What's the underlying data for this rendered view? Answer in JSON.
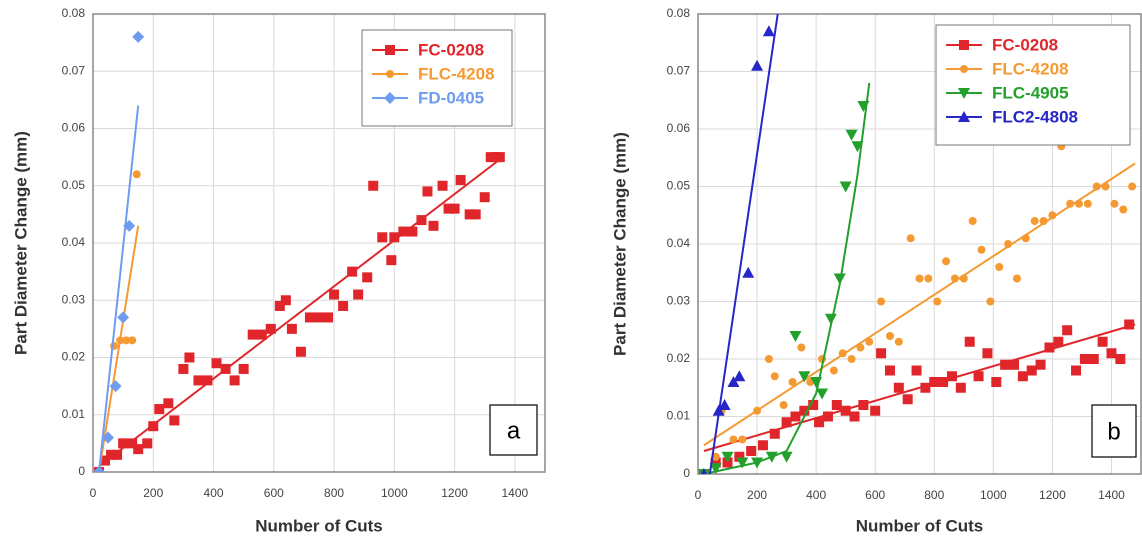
{
  "chart_data": [
    {
      "type": "scatter",
      "panel_label": "a",
      "xlabel": "Number of Cuts",
      "ylabel": "Part Diameter Change (mm)",
      "xlim": [
        0,
        1500
      ],
      "ylim": [
        0,
        0.08
      ],
      "xticks": [
        0,
        200,
        400,
        600,
        800,
        1000,
        1200,
        1400
      ],
      "yticks": [
        0,
        0.01,
        0.02,
        0.03,
        0.04,
        0.05,
        0.06,
        0.07,
        0.08
      ],
      "grid": true,
      "legend": "upper right",
      "series": [
        {
          "name": "FC-0208",
          "color": "#e0262b",
          "marker": "square",
          "x": [
            20,
            40,
            60,
            80,
            100,
            130,
            150,
            180,
            200,
            220,
            250,
            270,
            300,
            320,
            350,
            380,
            410,
            440,
            470,
            500,
            530,
            560,
            590,
            620,
            640,
            660,
            690,
            720,
            750,
            780,
            800,
            830,
            860,
            880,
            910,
            930,
            960,
            990,
            1000,
            1030,
            1060,
            1090,
            1110,
            1130,
            1160,
            1180,
            1200,
            1220,
            1250,
            1270,
            1300,
            1320,
            1340,
            1350
          ],
          "y": [
            0,
            0.002,
            0.003,
            0.003,
            0.005,
            0.005,
            0.004,
            0.005,
            0.008,
            0.011,
            0.012,
            0.009,
            0.018,
            0.02,
            0.016,
            0.016,
            0.019,
            0.018,
            0.016,
            0.018,
            0.024,
            0.024,
            0.025,
            0.029,
            0.03,
            0.025,
            0.021,
            0.027,
            0.027,
            0.027,
            0.031,
            0.029,
            0.035,
            0.031,
            0.034,
            0.05,
            0.041,
            0.037,
            0.041,
            0.042,
            0.042,
            0.044,
            0.049,
            0.043,
            0.05,
            0.046,
            0.046,
            0.051,
            0.045,
            0.045,
            0.048,
            0.055,
            0.055,
            0.055
          ],
          "trend": {
            "x": [
              20,
              1360
            ],
            "y": [
              0.001,
              0.055
            ]
          }
        },
        {
          "name": "FLC-4208",
          "color": "#f59a32",
          "marker": "circle",
          "x": [
            20,
            50,
            70,
            90,
            110,
            130,
            145
          ],
          "y": [
            0,
            0.006,
            0.022,
            0.023,
            0.023,
            0.023,
            0.052
          ],
          "trend": {
            "x": [
              20,
              150
            ],
            "y": [
              0,
              0.043
            ]
          }
        },
        {
          "name": "FD-0405",
          "color": "#6f9cf0",
          "marker": "diamond",
          "x": [
            20,
            50,
            75,
            100,
            120,
            150
          ],
          "y": [
            0,
            0.006,
            0.015,
            0.027,
            0.043,
            0.076
          ],
          "trend": {
            "x": [
              20,
              150
            ],
            "y": [
              0,
              0.064
            ]
          }
        }
      ]
    },
    {
      "type": "scatter",
      "panel_label": "b",
      "xlabel": "Number of Cuts",
      "ylabel": "Part Diameter Change (mm)",
      "xlim": [
        0,
        1500
      ],
      "ylim": [
        0,
        0.08
      ],
      "xticks": [
        0,
        200,
        400,
        600,
        800,
        1000,
        1200,
        1400
      ],
      "yticks": [
        0,
        0.01,
        0.02,
        0.03,
        0.04,
        0.05,
        0.06,
        0.07,
        0.08
      ],
      "grid": true,
      "legend": "upper right",
      "series": [
        {
          "name": "FC-0208",
          "color": "#e0262b",
          "marker": "square",
          "x": [
            20,
            60,
            100,
            140,
            180,
            220,
            260,
            300,
            330,
            360,
            390,
            410,
            440,
            470,
            500,
            530,
            560,
            600,
            620,
            650,
            680,
            710,
            740,
            770,
            800,
            830,
            860,
            890,
            920,
            950,
            980,
            1010,
            1040,
            1070,
            1100,
            1130,
            1160,
            1190,
            1220,
            1250,
            1280,
            1310,
            1340,
            1370,
            1400,
            1430,
            1460
          ],
          "y": [
            0,
            0.002,
            0.002,
            0.003,
            0.004,
            0.005,
            0.007,
            0.009,
            0.01,
            0.011,
            0.012,
            0.009,
            0.01,
            0.012,
            0.011,
            0.01,
            0.012,
            0.011,
            0.021,
            0.018,
            0.015,
            0.013,
            0.018,
            0.015,
            0.016,
            0.016,
            0.017,
            0.015,
            0.023,
            0.017,
            0.021,
            0.016,
            0.019,
            0.019,
            0.017,
            0.018,
            0.019,
            0.022,
            0.023,
            0.025,
            0.018,
            0.02,
            0.02,
            0.023,
            0.021,
            0.02,
            0.026
          ],
          "trend": {
            "x": [
              20,
              1480
            ],
            "y": [
              0.004,
              0.026
            ]
          }
        },
        {
          "name": "FLC-4208",
          "color": "#f59a32",
          "marker": "circle",
          "x": [
            20,
            60,
            80,
            120,
            150,
            200,
            240,
            260,
            290,
            320,
            350,
            380,
            420,
            460,
            490,
            520,
            550,
            580,
            620,
            650,
            680,
            720,
            750,
            780,
            810,
            840,
            870,
            900,
            930,
            960,
            990,
            1020,
            1050,
            1080,
            1110,
            1140,
            1170,
            1200,
            1230,
            1260,
            1290,
            1320,
            1350,
            1380,
            1410,
            1440,
            1470
          ],
          "y": [
            0,
            0.003,
            0.011,
            0.006,
            0.006,
            0.011,
            0.02,
            0.017,
            0.012,
            0.016,
            0.022,
            0.016,
            0.02,
            0.018,
            0.021,
            0.02,
            0.022,
            0.023,
            0.03,
            0.024,
            0.023,
            0.041,
            0.034,
            0.034,
            0.03,
            0.037,
            0.034,
            0.034,
            0.044,
            0.039,
            0.03,
            0.036,
            0.04,
            0.034,
            0.041,
            0.044,
            0.044,
            0.045,
            0.057,
            0.047,
            0.047,
            0.047,
            0.05,
            0.05,
            0.047,
            0.046,
            0.05
          ],
          "trend": {
            "x": [
              20,
              1480
            ],
            "y": [
              0.005,
              0.054
            ]
          }
        },
        {
          "name": "FLC-4905",
          "color": "#22a02b",
          "marker": "triangle-down",
          "x": [
            20,
            60,
            100,
            150,
            200,
            250,
            300,
            330,
            360,
            400,
            420,
            450,
            480,
            500,
            520,
            540,
            560
          ],
          "y": [
            0,
            0.001,
            0.003,
            0.002,
            0.002,
            0.003,
            0.003,
            0.024,
            0.017,
            0.016,
            0.014,
            0.027,
            0.034,
            0.05,
            0.059,
            0.057,
            0.064
          ],
          "trend": {
            "x": [
              20,
              200,
              300,
              400,
              480,
              540,
              580
            ],
            "y": [
              0,
              0.002,
              0.004,
              0.014,
              0.033,
              0.052,
              0.068
            ]
          }
        },
        {
          "name": "FLC2-4808",
          "color": "#2727c8",
          "marker": "triangle-up",
          "x": [
            20,
            70,
            90,
            120,
            140,
            170,
            200,
            240
          ],
          "y": [
            0,
            0.011,
            0.012,
            0.016,
            0.017,
            0.035,
            0.071,
            0.077
          ],
          "trend": {
            "x": [
              40,
              270
            ],
            "y": [
              0,
              0.08
            ]
          }
        }
      ]
    }
  ]
}
